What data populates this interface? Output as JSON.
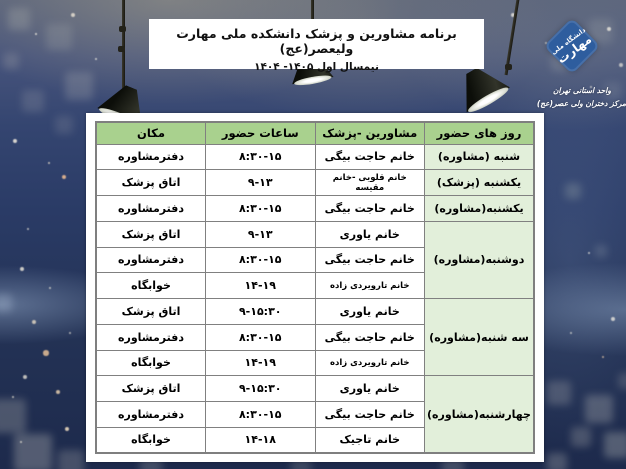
{
  "header": {
    "title": "برنامه مشاورین و پزشک دانشکده ملی مهارت ولیعصر(عج)",
    "subtitle": "نیمسال اول ۱۴۰۵- ۱۴۰۴"
  },
  "logo": {
    "name_line1": "دانشگاه ملی",
    "name_line2": "مهارت",
    "caption_line1": "واحد استانی تهران",
    "caption_line2": "مرکز دختران ولی عصر(عج)",
    "brand_color": "#2e5d9e"
  },
  "table": {
    "headers": [
      "روز های حضور",
      "مشاورین -پزشک",
      "ساعات حضور",
      "مکان"
    ],
    "groups": [
      {
        "day": "شنبه (مشاوره)",
        "rows": [
          [
            "خانم حاجت بیگی",
            "۸:۳۰-۱۵",
            "دفترمشاوره"
          ]
        ]
      },
      {
        "day": "یکشنبه (پزشک)",
        "rows": [
          [
            "خانم قلویی -خانم مقیسه",
            "۹-۱۳",
            "اتاق پزشک"
          ]
        ]
      },
      {
        "day": "یکشنبه(مشاوره)",
        "rows": [
          [
            "خانم حاجت بیگی",
            "۸:۳۰-۱۵",
            "دفترمشاوره"
          ]
        ]
      },
      {
        "day": "دوشنبه(مشاوره)",
        "rows": [
          [
            "خانم یاوری",
            "۹-۱۳",
            "اتاق پزشک"
          ],
          [
            "خانم حاجت بیگی",
            "۸:۳۰-۱۵",
            "دفترمشاوره"
          ],
          [
            "خانم تارویردی زاده",
            "۱۴-۱۹",
            "خوابگاه"
          ]
        ]
      },
      {
        "day": "سه شنبه(مشاوره)",
        "rows": [
          [
            "خانم یاوری",
            "۹-۱۵:۳۰",
            "اتاق پزشک"
          ],
          [
            "خانم حاجت بیگی",
            "۸:۳۰-۱۵",
            "دفترمشاوره"
          ],
          [
            "خانم تارویردی زاده",
            "۱۴-۱۹",
            "خوابگاه"
          ]
        ]
      },
      {
        "day": "چهارشنبه(مشاوره)",
        "rows": [
          [
            "خانم یاوری",
            "۹-۱۵:۳۰",
            "اتاق پزشک"
          ],
          [
            "خانم حاجت بیگی",
            "۸:۳۰-۱۵",
            "دفترمشاوره"
          ],
          [
            "خانم تاجیک",
            "۱۴-۱۸",
            "خوابگاه"
          ]
        ]
      }
    ],
    "colors": {
      "header_bg": "#a9d18e",
      "day_bg": "#e2efda",
      "border": "#808080"
    }
  }
}
